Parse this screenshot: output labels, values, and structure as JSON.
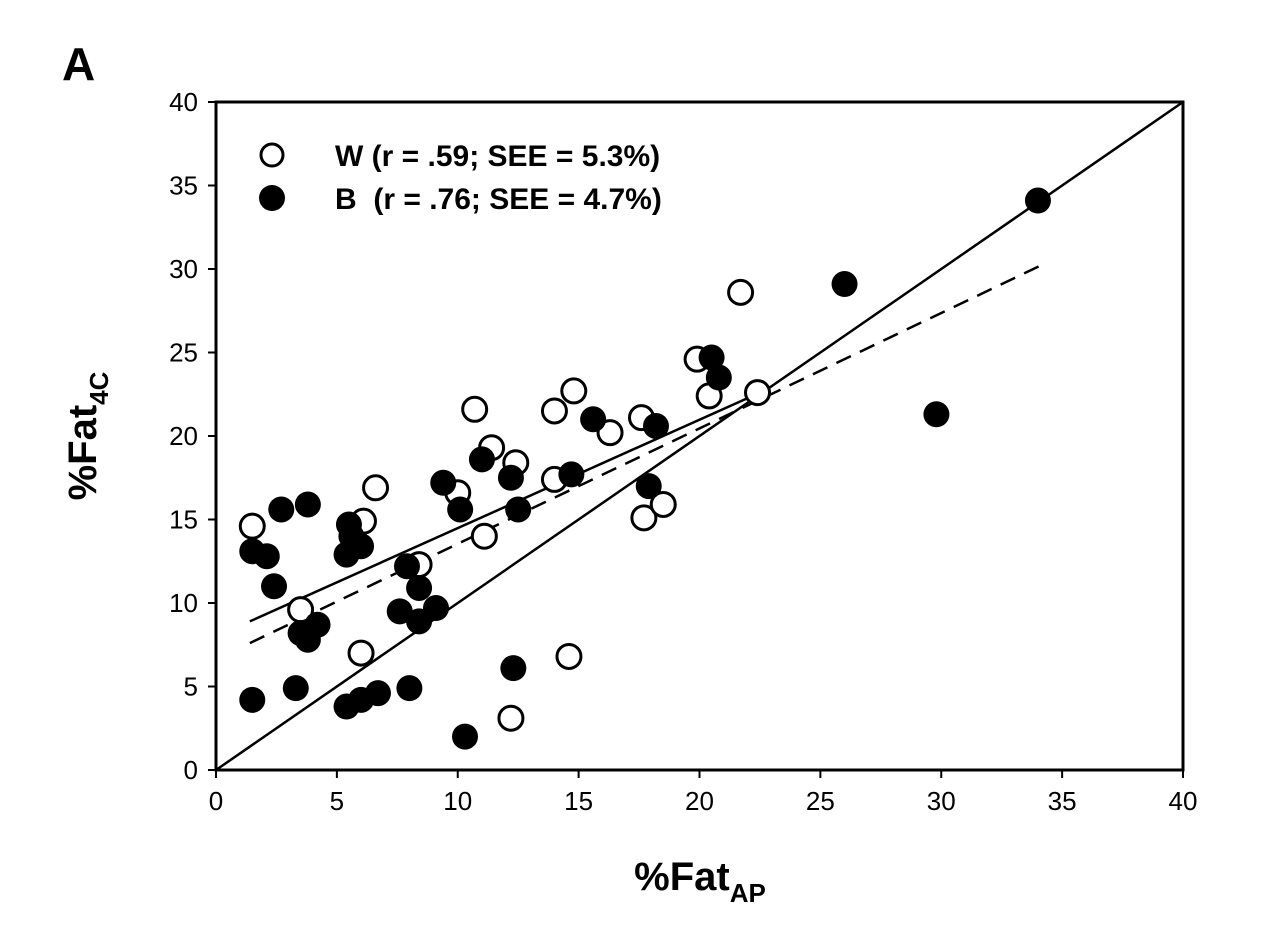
{
  "chart_data": {
    "type": "scatter",
    "panel_label": "A",
    "xlabel": {
      "main": "%Fat",
      "sub": "AP"
    },
    "ylabel": {
      "main": "%Fat",
      "sub": "4C"
    },
    "xlim": [
      0,
      40
    ],
    "ylim": [
      0,
      40
    ],
    "xticks": [
      0,
      5,
      10,
      15,
      20,
      25,
      30,
      35,
      40
    ],
    "yticks": [
      0,
      5,
      10,
      15,
      20,
      25,
      30,
      35,
      40
    ],
    "grid": false,
    "legend_position": "top-left",
    "series": [
      {
        "name": "W (r = .59; SEE = 5.3%)",
        "marker": "open-circle",
        "points": [
          [
            1.5,
            14.6
          ],
          [
            6.6,
            16.9
          ],
          [
            6.1,
            14.9
          ],
          [
            3.5,
            9.6
          ],
          [
            6.0,
            7.0
          ],
          [
            8.4,
            12.3
          ],
          [
            10.0,
            16.6
          ],
          [
            10.7,
            21.6
          ],
          [
            11.1,
            14.0
          ],
          [
            11.4,
            19.3
          ],
          [
            12.4,
            18.4
          ],
          [
            12.2,
            3.1
          ],
          [
            14.0,
            21.5
          ],
          [
            14.0,
            17.4
          ],
          [
            14.8,
            22.7
          ],
          [
            16.3,
            20.2
          ],
          [
            17.6,
            21.1
          ],
          [
            17.7,
            15.1
          ],
          [
            18.5,
            15.9
          ],
          [
            14.6,
            6.8
          ],
          [
            19.9,
            24.6
          ],
          [
            20.4,
            22.4
          ],
          [
            21.7,
            28.6
          ],
          [
            22.4,
            22.6
          ]
        ]
      },
      {
        "name": "B  (r = .76; SEE = 4.7%)",
        "marker": "filled-circle",
        "points": [
          [
            1.5,
            4.2
          ],
          [
            1.5,
            13.1
          ],
          [
            2.1,
            12.8
          ],
          [
            2.4,
            11.0
          ],
          [
            2.7,
            15.6
          ],
          [
            3.8,
            15.9
          ],
          [
            3.3,
            4.9
          ],
          [
            3.5,
            8.2
          ],
          [
            3.8,
            7.8
          ],
          [
            4.2,
            8.7
          ],
          [
            5.4,
            3.8
          ],
          [
            5.5,
            14.7
          ],
          [
            5.4,
            12.9
          ],
          [
            6.0,
            13.4
          ],
          [
            5.6,
            14.0
          ],
          [
            6.0,
            4.2
          ],
          [
            6.7,
            4.6
          ],
          [
            8.0,
            4.9
          ],
          [
            7.6,
            9.5
          ],
          [
            7.9,
            12.2
          ],
          [
            8.4,
            10.9
          ],
          [
            8.4,
            8.9
          ],
          [
            9.1,
            9.7
          ],
          [
            9.4,
            17.2
          ],
          [
            10.1,
            15.6
          ],
          [
            11.0,
            18.6
          ],
          [
            10.3,
            2.0
          ],
          [
            12.3,
            6.1
          ],
          [
            12.2,
            17.5
          ],
          [
            12.5,
            15.6
          ],
          [
            14.7,
            17.7
          ],
          [
            15.6,
            21.0
          ],
          [
            18.2,
            20.6
          ],
          [
            17.9,
            17.0
          ],
          [
            20.5,
            24.7
          ],
          [
            20.8,
            23.5
          ],
          [
            26.0,
            29.1
          ],
          [
            29.8,
            21.3
          ],
          [
            34.0,
            34.1
          ]
        ]
      }
    ],
    "lines": [
      {
        "name": "identity",
        "style": "solid",
        "from": [
          0,
          0
        ],
        "to": [
          40,
          40
        ]
      },
      {
        "name": "W regression",
        "style": "solid",
        "from": [
          1.4,
          8.9
        ],
        "to": [
          22.5,
          22.6
        ]
      },
      {
        "name": "B regression",
        "style": "dashed",
        "from": [
          1.4,
          7.6
        ],
        "to": [
          34.1,
          30.2
        ]
      }
    ]
  }
}
